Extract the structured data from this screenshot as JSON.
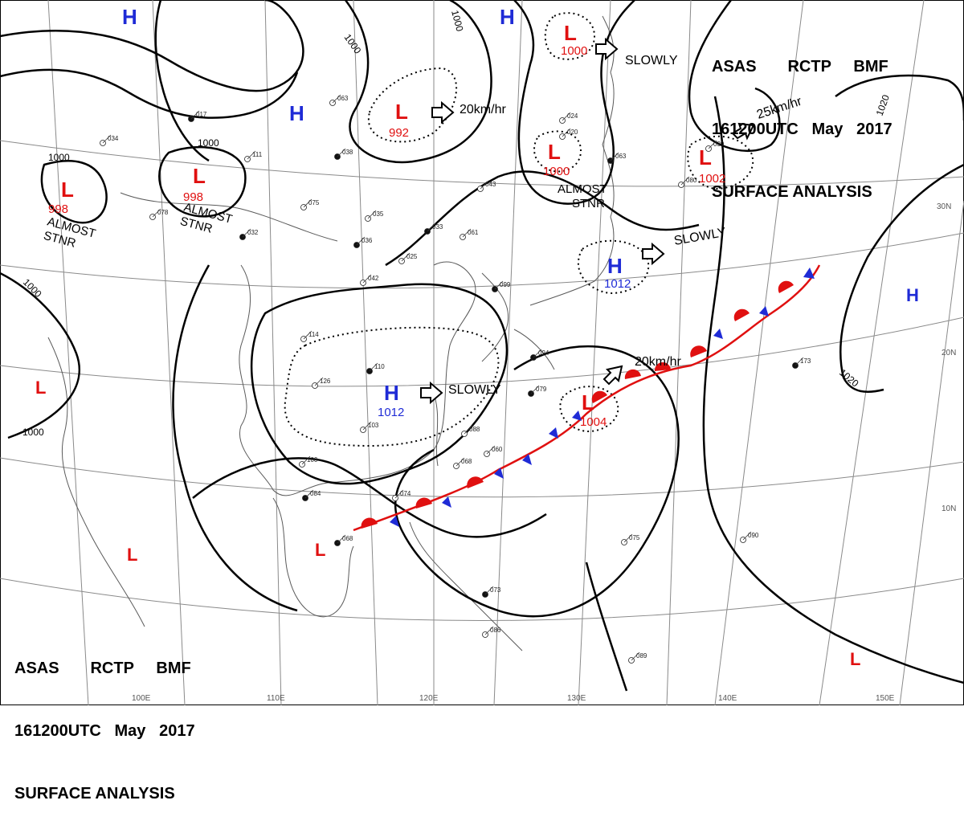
{
  "header_top": {
    "line1": [
      "ASAS",
      "RCTP",
      "BMF"
    ],
    "line2": [
      "161200UTC",
      "May",
      "2017"
    ],
    "line3": "SURFACE ANALYSIS"
  },
  "header_bottom": {
    "line1": [
      "ASAS",
      "RCTP",
      "BMF"
    ],
    "line2": [
      "161200UTC",
      "May",
      "2017"
    ],
    "line3": "SURFACE ANALYSIS"
  },
  "colors": {
    "high": "#1f2bd6",
    "low": "#e01010",
    "warm_front": "#e01010",
    "cold_front": "#1f2bd6",
    "isobar": "#000000",
    "grid": "#888888",
    "coast": "#555555"
  },
  "pressure_systems": [
    {
      "id": "h1",
      "type": "H",
      "value": ""
    },
    {
      "id": "h2",
      "type": "H",
      "value": ""
    },
    {
      "id": "h3",
      "type": "H",
      "value": ""
    },
    {
      "id": "h4",
      "type": "H",
      "value": ""
    },
    {
      "id": "h5",
      "type": "H",
      "value": "1012"
    },
    {
      "id": "h6",
      "type": "H",
      "value": "1012"
    },
    {
      "id": "l1",
      "type": "L",
      "value": "998"
    },
    {
      "id": "l2",
      "type": "L",
      "value": "998"
    },
    {
      "id": "l3",
      "type": "L",
      "value": "992"
    },
    {
      "id": "l4",
      "type": "L",
      "value": "1000"
    },
    {
      "id": "l5",
      "type": "L",
      "value": "1000"
    },
    {
      "id": "l6",
      "type": "L",
      "value": "1002"
    },
    {
      "id": "l7",
      "type": "L",
      "value": "1004"
    },
    {
      "id": "l8",
      "type": "L",
      "value": ""
    },
    {
      "id": "l9",
      "type": "L",
      "value": ""
    },
    {
      "id": "l10",
      "type": "L",
      "value": ""
    },
    {
      "id": "l11",
      "type": "L",
      "value": ""
    }
  ],
  "movement_labels": {
    "m1": "20km/hr",
    "m2": "SLOWLY",
    "m3": "25km/hr",
    "m4": "SLOWLY",
    "m5": "SLOWLY",
    "m6": "20km/hr",
    "m7": "ALMOST\nSTNR",
    "m8": "ALMOST\nSTNR",
    "m9": "ALMOST\nSTNR"
  },
  "isobar_labels": {
    "i1": "1000",
    "i2": "1000",
    "i3": "1000",
    "i4": "1000",
    "i5": "1000",
    "i6": "1000",
    "i7": "1000",
    "i8": "1020",
    "i9": "1020"
  },
  "grid_labels": {
    "lat": [
      "30N",
      "20N",
      "10N"
    ],
    "lon": [
      "100E",
      "110E",
      "120E",
      "130E",
      "140E",
      "150E"
    ]
  },
  "station_samples": [
    {
      "v": "017"
    },
    {
      "v": "034"
    },
    {
      "v": "078"
    },
    {
      "v": "032"
    },
    {
      "v": "111"
    },
    {
      "v": "063"
    },
    {
      "v": "038"
    },
    {
      "v": "075"
    },
    {
      "v": "035"
    },
    {
      "v": "036"
    },
    {
      "v": "025"
    },
    {
      "v": "042"
    },
    {
      "v": "033"
    },
    {
      "v": "043"
    },
    {
      "v": "061"
    },
    {
      "v": "099"
    },
    {
      "v": "114"
    },
    {
      "v": "126"
    },
    {
      "v": "110"
    },
    {
      "v": "103"
    },
    {
      "v": "100"
    },
    {
      "v": "084"
    },
    {
      "v": "074"
    },
    {
      "v": "068"
    },
    {
      "v": "079"
    },
    {
      "v": "060"
    },
    {
      "v": "088"
    },
    {
      "v": "094"
    },
    {
      "v": "024"
    },
    {
      "v": "020"
    },
    {
      "v": "063"
    },
    {
      "v": "080"
    },
    {
      "v": "039"
    },
    {
      "v": "173"
    },
    {
      "v": "090"
    },
    {
      "v": "075"
    },
    {
      "v": "073"
    },
    {
      "v": "086"
    },
    {
      "v": "089"
    },
    {
      "v": "068"
    }
  ]
}
